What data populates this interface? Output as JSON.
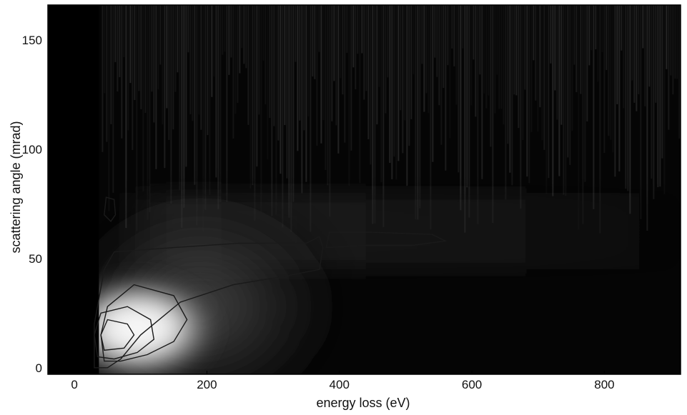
{
  "chart_data": {
    "type": "heatmap",
    "title": "",
    "xlabel": "energy loss (eV)",
    "ylabel": "scattering angle (mrad)",
    "xlim": [
      -40,
      915
    ],
    "ylim": [
      -3,
      166
    ],
    "x_ticks": [
      0,
      200,
      400,
      600,
      800
    ],
    "y_ticks": [
      0,
      50,
      100,
      150
    ],
    "x_tick_labels": [
      "0",
      "200",
      "400",
      "600",
      "800"
    ],
    "y_tick_labels": [
      "0",
      "50",
      "100",
      "150"
    ],
    "colormap": "grayscale (black = low intensity, white = high intensity)",
    "background_color": "#050505",
    "intensity_peak": {
      "energy_loss": 50,
      "scattering_angle": 15
    },
    "edges": [
      {
        "energy_loss": 37,
        "scattering_angle_extent": [
          0,
          85
        ]
      },
      {
        "energy_loss": 370,
        "scattering_angle_extent": [
          0,
          60
        ]
      }
    ],
    "contours": [
      {
        "level": "outer",
        "points": [
          [
            30,
            0
          ],
          [
            30,
            20
          ],
          [
            45,
            45
          ],
          [
            60,
            53
          ],
          [
            150,
            55
          ],
          [
            250,
            57
          ],
          [
            350,
            57
          ],
          [
            370,
            60
          ],
          [
            375,
            55
          ],
          [
            370,
            45
          ],
          [
            320,
            42
          ],
          [
            240,
            38
          ],
          [
            160,
            30
          ],
          [
            100,
            15
          ],
          [
            70,
            4
          ],
          [
            50,
            0
          ]
        ]
      },
      {
        "level": "middle",
        "points": [
          [
            45,
            3
          ],
          [
            40,
            15
          ],
          [
            50,
            28
          ],
          [
            90,
            38
          ],
          [
            150,
            33
          ],
          [
            170,
            22
          ],
          [
            150,
            12
          ],
          [
            110,
            6
          ],
          [
            70,
            3
          ]
        ]
      },
      {
        "level": "inner",
        "points": [
          [
            35,
            5
          ],
          [
            30,
            15
          ],
          [
            40,
            25
          ],
          [
            80,
            28
          ],
          [
            115,
            22
          ],
          [
            120,
            13
          ],
          [
            95,
            7
          ],
          [
            60,
            4
          ]
        ]
      },
      {
        "level": "innermost",
        "points": [
          [
            45,
            8
          ],
          [
            40,
            15
          ],
          [
            50,
            22
          ],
          [
            80,
            20
          ],
          [
            90,
            15
          ],
          [
            75,
            9
          ]
        ]
      },
      {
        "level": "island-high",
        "points": [
          [
            380,
            55
          ],
          [
            385,
            62
          ],
          [
            450,
            62
          ],
          [
            540,
            61
          ],
          [
            560,
            58
          ],
          [
            510,
            56
          ],
          [
            440,
            56
          ]
        ]
      },
      {
        "level": "island-small",
        "points": [
          [
            45,
            70
          ],
          [
            48,
            78
          ],
          [
            60,
            77
          ],
          [
            62,
            70
          ],
          [
            55,
            67
          ]
        ]
      }
    ]
  }
}
